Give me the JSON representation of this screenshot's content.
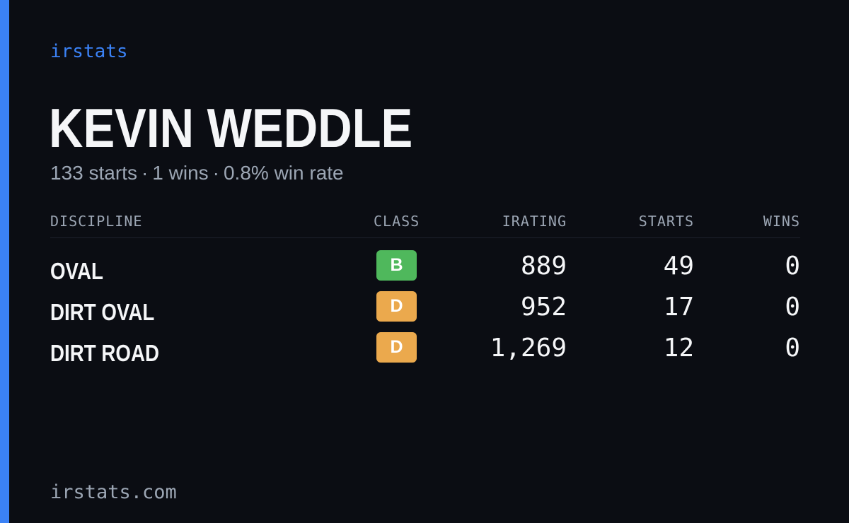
{
  "brand": {
    "label": "irstats"
  },
  "driver": {
    "name": "KEVIN WEDDLE",
    "summary": {
      "starts": "133 starts",
      "wins": "1 wins",
      "win_rate": "0.8% win rate",
      "separator": "·"
    }
  },
  "table": {
    "headers": {
      "discipline": "DISCIPLINE",
      "class": "CLASS",
      "irating": "IRATING",
      "starts": "STARTS",
      "wins": "WINS"
    },
    "rows": [
      {
        "discipline": "OVAL",
        "class": "B",
        "class_color": "#4fb85c",
        "irating": "889",
        "starts": "49",
        "wins": "0"
      },
      {
        "discipline": "DIRT OVAL",
        "class": "D",
        "class_color": "#eba94d",
        "irating": "952",
        "starts": "17",
        "wins": "0"
      },
      {
        "discipline": "DIRT ROAD",
        "class": "D",
        "class_color": "#eba94d",
        "irating": "1,269",
        "starts": "12",
        "wins": "0"
      }
    ]
  },
  "footer": {
    "domain": "irstats.com"
  },
  "colors": {
    "accent": "#3b82f6",
    "background": "#0b0d13",
    "primary_text": "#f5f6f8",
    "muted_text": "#9ca6b4"
  }
}
